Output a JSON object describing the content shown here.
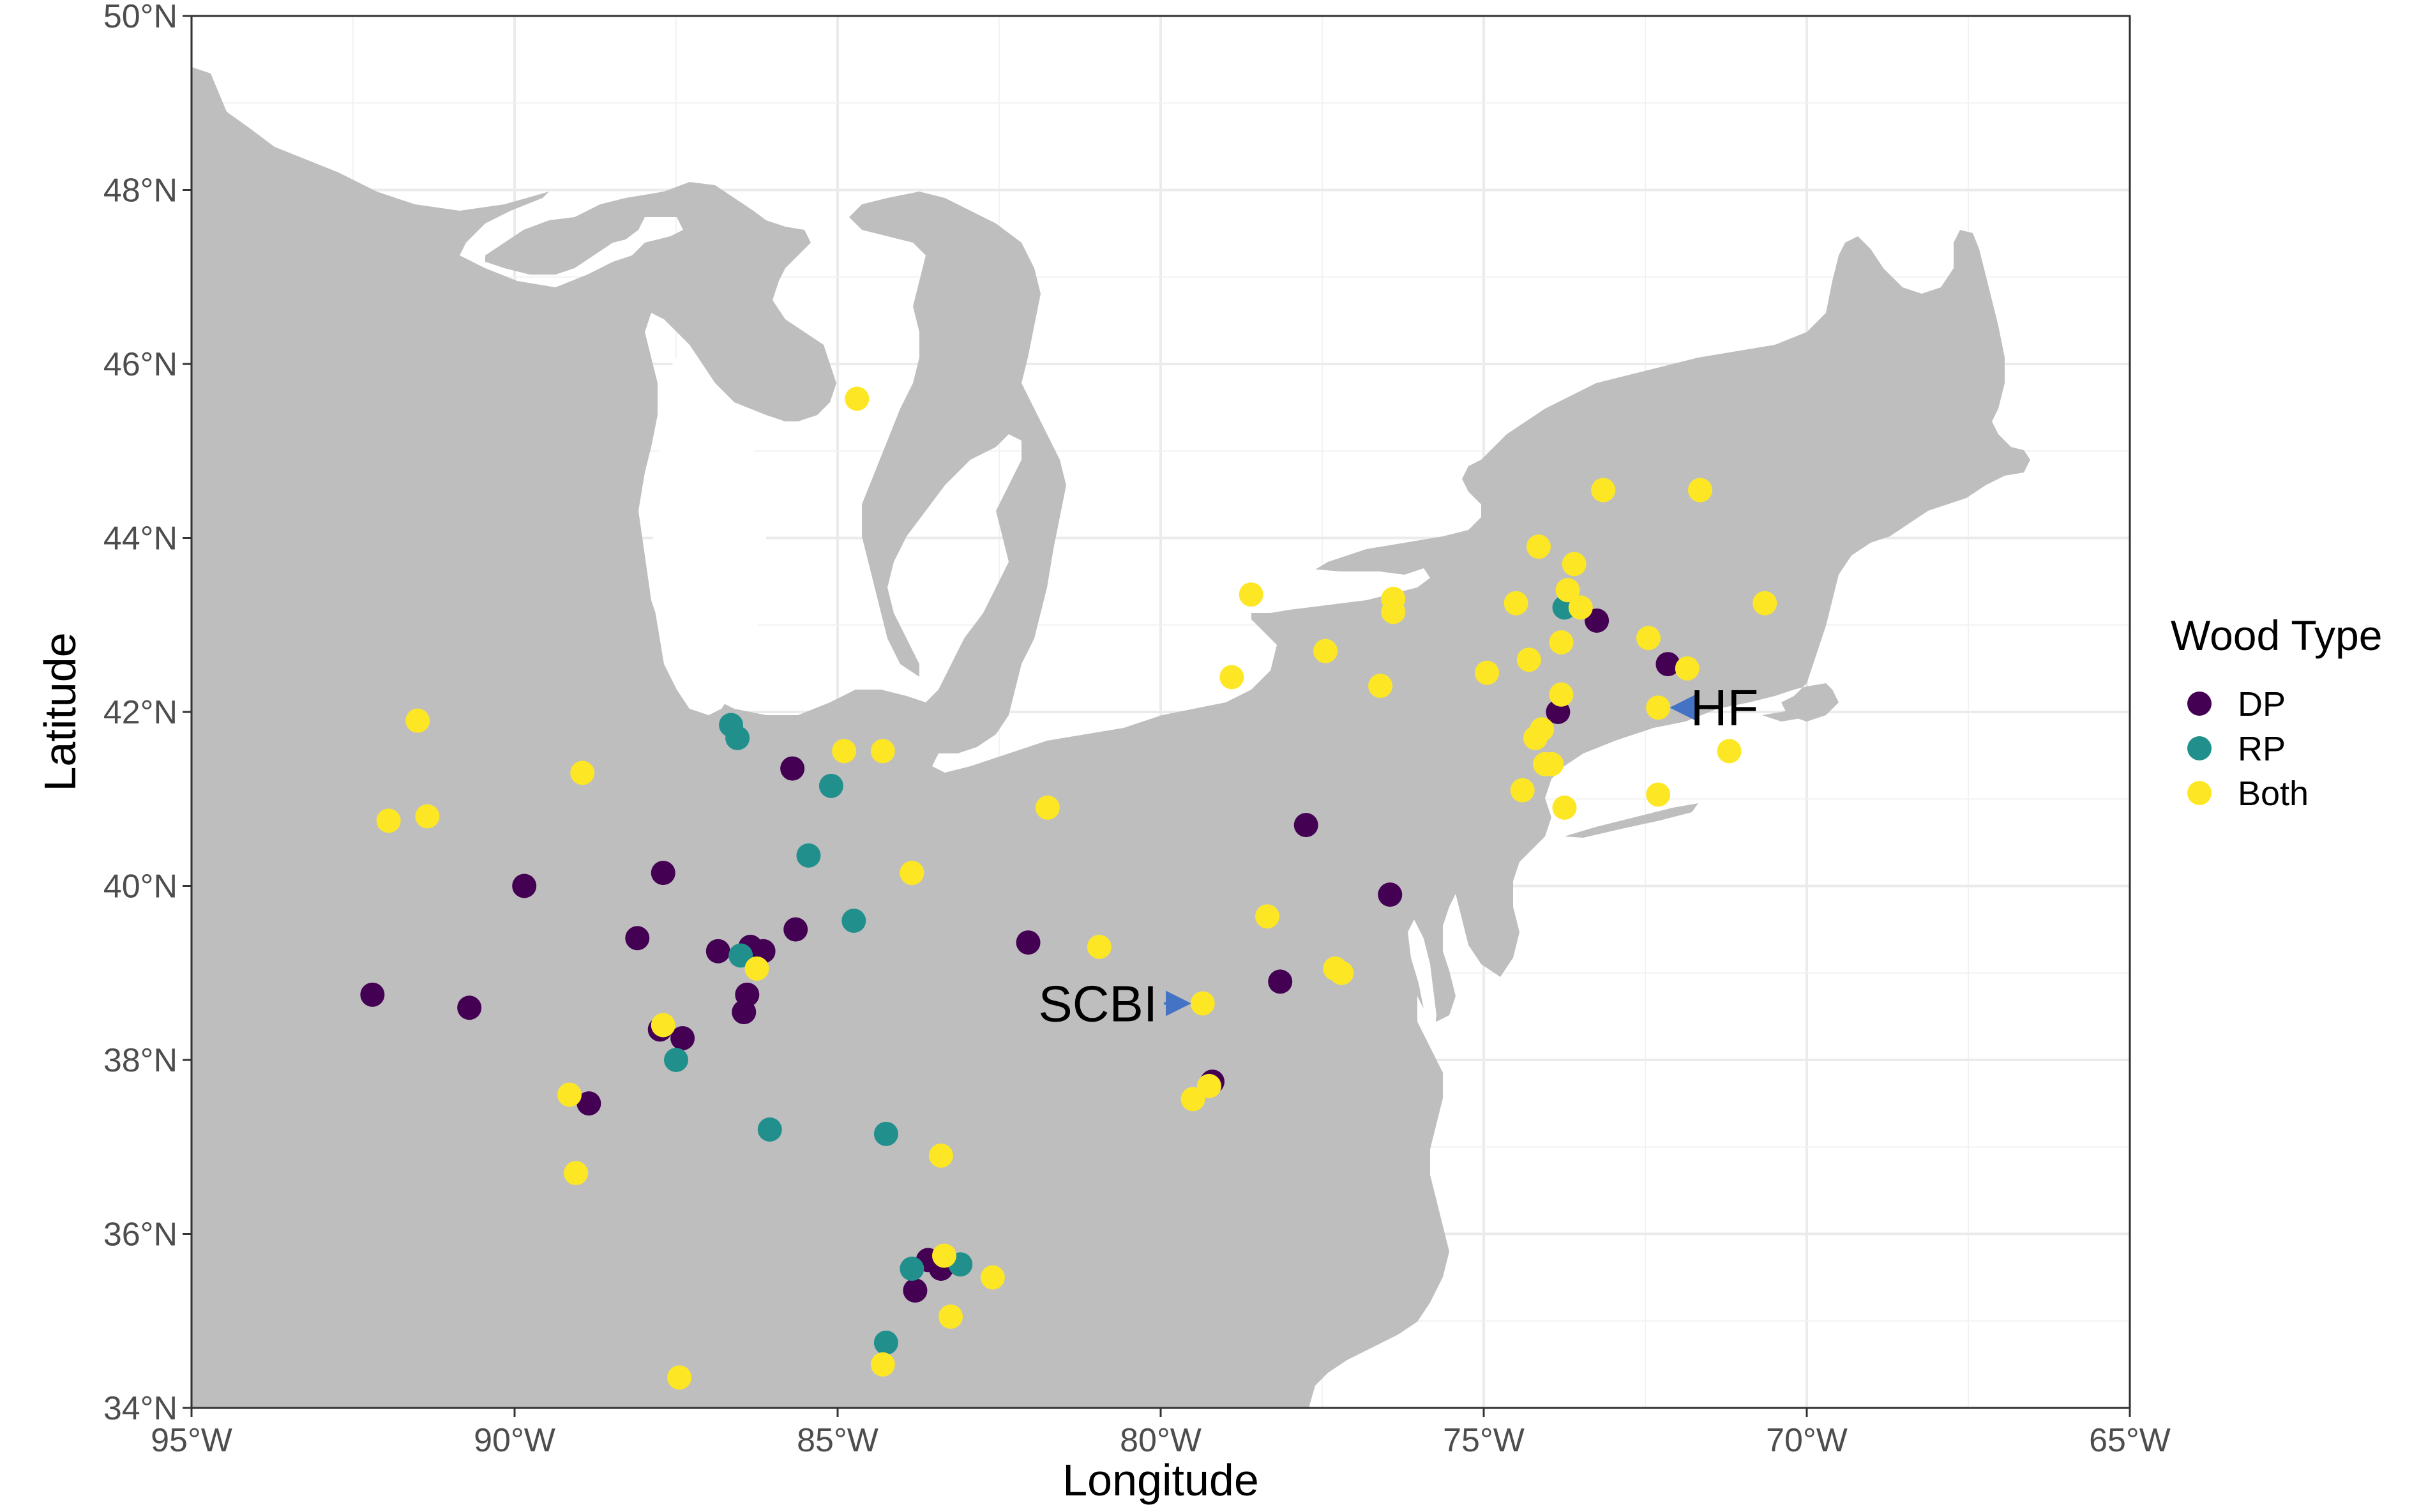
{
  "chart_data": {
    "type": "scatter",
    "title": "",
    "xlabel": "Longitude",
    "ylabel": "Latitude",
    "xlim": [
      -95,
      -65
    ],
    "ylim": [
      34,
      50
    ],
    "x_ticks": [
      {
        "value": -95,
        "label": "95°W"
      },
      {
        "value": -90,
        "label": "90°W"
      },
      {
        "value": -85,
        "label": "85°W"
      },
      {
        "value": -80,
        "label": "80°W"
      },
      {
        "value": -75,
        "label": "75°W"
      },
      {
        "value": -70,
        "label": "70°W"
      },
      {
        "value": -65,
        "label": "65°W"
      }
    ],
    "y_ticks": [
      {
        "value": 34,
        "label": "34°N"
      },
      {
        "value": 36,
        "label": "36°N"
      },
      {
        "value": 38,
        "label": "38°N"
      },
      {
        "value": 40,
        "label": "40°N"
      },
      {
        "value": 42,
        "label": "42°N"
      },
      {
        "value": 44,
        "label": "44°N"
      },
      {
        "value": 46,
        "label": "46°N"
      },
      {
        "value": 48,
        "label": "48°N"
      },
      {
        "value": 50,
        "label": "50°N"
      }
    ],
    "grid": true,
    "legend": {
      "title": "Wood Type",
      "placement": "right",
      "entries": [
        {
          "name": "DP",
          "color": "#440154"
        },
        {
          "name": "RP",
          "color": "#21908C"
        },
        {
          "name": "Both",
          "color": "#FDE725"
        }
      ]
    },
    "land_color": "#bebebe",
    "panel_background": "#ffffff",
    "series": [
      {
        "name": "DP",
        "color": "#440154",
        "points": [
          [
            -92.2,
            38.75
          ],
          [
            -90.7,
            38.6
          ],
          [
            -89.85,
            40.0
          ],
          [
            -88.1,
            39.4
          ],
          [
            -87.7,
            40.15
          ],
          [
            -87.75,
            38.35
          ],
          [
            -87.4,
            38.25
          ],
          [
            -88.85,
            37.5
          ],
          [
            -86.85,
            39.25
          ],
          [
            -86.35,
            39.3
          ],
          [
            -86.15,
            39.25
          ],
          [
            -86.4,
            38.75
          ],
          [
            -86.45,
            38.55
          ],
          [
            -85.7,
            41.35
          ],
          [
            -85.65,
            39.5
          ],
          [
            -82.05,
            39.35
          ],
          [
            -77.75,
            40.7
          ],
          [
            -78.15,
            38.9
          ],
          [
            -76.45,
            39.9
          ],
          [
            -79.2,
            37.75
          ],
          [
            -73.85,
            42.0
          ],
          [
            -73.25,
            43.05
          ],
          [
            -72.15,
            42.55
          ],
          [
            -83.6,
            35.7
          ],
          [
            -83.4,
            35.6
          ],
          [
            -83.8,
            35.35
          ]
        ]
      },
      {
        "name": "RP",
        "color": "#21908C",
        "points": [
          [
            -86.65,
            41.85
          ],
          [
            -86.55,
            41.7
          ],
          [
            -85.1,
            41.15
          ],
          [
            -85.45,
            40.35
          ],
          [
            -84.75,
            39.6
          ],
          [
            -86.5,
            39.2
          ],
          [
            -87.5,
            38.0
          ],
          [
            -86.05,
            37.2
          ],
          [
            -84.25,
            37.15
          ],
          [
            -83.85,
            35.6
          ],
          [
            -83.1,
            35.65
          ],
          [
            -84.25,
            34.75
          ],
          [
            -73.75,
            43.2
          ]
        ]
      },
      {
        "name": "Both",
        "color": "#FDE725",
        "points": [
          [
            -84.7,
            45.6
          ],
          [
            -91.5,
            41.9
          ],
          [
            -88.95,
            41.3
          ],
          [
            -91.35,
            40.8
          ],
          [
            -91.95,
            40.75
          ],
          [
            -84.9,
            41.55
          ],
          [
            -84.3,
            41.55
          ],
          [
            -83.85,
            40.15
          ],
          [
            -86.25,
            39.05
          ],
          [
            -87.7,
            38.4
          ],
          [
            -89.15,
            37.6
          ],
          [
            -89.05,
            36.7
          ],
          [
            -83.4,
            36.9
          ],
          [
            -83.35,
            35.75
          ],
          [
            -82.6,
            35.5
          ],
          [
            -83.25,
            35.05
          ],
          [
            -84.3,
            34.5
          ],
          [
            -87.45,
            34.35
          ],
          [
            -81.75,
            40.9
          ],
          [
            -80.95,
            39.3
          ],
          [
            -79.35,
            38.65
          ],
          [
            -79.5,
            37.55
          ],
          [
            -79.25,
            37.7
          ],
          [
            -78.35,
            39.65
          ],
          [
            -77.3,
            39.05
          ],
          [
            -77.2,
            39.0
          ],
          [
            -78.9,
            42.4
          ],
          [
            -78.6,
            43.35
          ],
          [
            -77.45,
            42.7
          ],
          [
            -76.6,
            42.3
          ],
          [
            -76.4,
            43.3
          ],
          [
            -76.4,
            43.15
          ],
          [
            -74.95,
            42.45
          ],
          [
            -74.5,
            43.25
          ],
          [
            -74.15,
            43.9
          ],
          [
            -73.7,
            43.4
          ],
          [
            -73.6,
            43.7
          ],
          [
            -73.5,
            43.2
          ],
          [
            -73.8,
            42.8
          ],
          [
            -74.3,
            42.6
          ],
          [
            -73.8,
            42.2
          ],
          [
            -74.2,
            41.7
          ],
          [
            -74.1,
            41.8
          ],
          [
            -74.05,
            41.4
          ],
          [
            -73.95,
            41.4
          ],
          [
            -74.4,
            41.1
          ],
          [
            -73.75,
            40.9
          ],
          [
            -73.15,
            44.55
          ],
          [
            -71.65,
            44.55
          ],
          [
            -70.65,
            43.25
          ],
          [
            -72.45,
            42.85
          ],
          [
            -71.85,
            42.5
          ],
          [
            -72.3,
            42.05
          ],
          [
            -72.3,
            41.05
          ],
          [
            -71.2,
            41.55
          ]
        ]
      }
    ],
    "annotations": [
      {
        "text": "HF",
        "x": -72.3,
        "y": 42.05,
        "arrow_from": [
          -71.9,
          42.05
        ]
      },
      {
        "text": "SCBI",
        "x": -79.35,
        "y": 38.65,
        "arrow_from": [
          -79.95,
          38.65
        ]
      }
    ]
  }
}
